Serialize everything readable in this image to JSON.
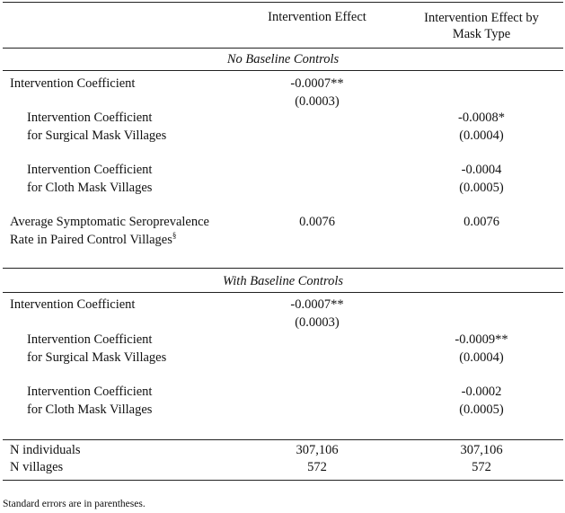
{
  "headers": {
    "col1": "Intervention Effect",
    "col2_line1": "Intervention Effect by",
    "col2_line2": "Mask Type"
  },
  "panel_a": {
    "title": "No Baseline Controls",
    "intervention_label": "Intervention Coefficient",
    "intervention_coef": "-0.0007**",
    "intervention_se": "(0.0003)",
    "surgical_label_1": "Intervention Coefficient",
    "surgical_label_2": "for Surgical Mask Villages",
    "surgical_coef": "-0.0008*",
    "surgical_se": "(0.0004)",
    "cloth_label_1": "Intervention Coefficient",
    "cloth_label_2": "for Cloth Mask Villages",
    "cloth_coef": "-0.0004",
    "cloth_se": "(0.0005)",
    "avg_label_1": "Average Symptomatic Seroprevalence",
    "avg_label_2": "Rate in Paired Control Villages",
    "avg_label_sup": "§",
    "avg_col1": "0.0076",
    "avg_col2": "0.0076"
  },
  "panel_b": {
    "title": "With Baseline Controls",
    "intervention_label": "Intervention Coefficient",
    "intervention_coef": "-0.0007**",
    "intervention_se": "(0.0003)",
    "surgical_label_1": "Intervention Coefficient",
    "surgical_label_2": "for Surgical Mask Villages",
    "surgical_coef": "-0.0009**",
    "surgical_se": "(0.0004)",
    "cloth_label_1": "Intervention Coefficient",
    "cloth_label_2": "for Cloth Mask Villages",
    "cloth_coef": "-0.0002",
    "cloth_se": "(0.0005)"
  },
  "totals": {
    "n_individuals_label": "N individuals",
    "n_individuals_col1": "307,106",
    "n_individuals_col2": "307,106",
    "n_villages_label": "N villages",
    "n_villages_col1": "572",
    "n_villages_col2": "572"
  },
  "footnote": "Standard errors are in parentheses."
}
